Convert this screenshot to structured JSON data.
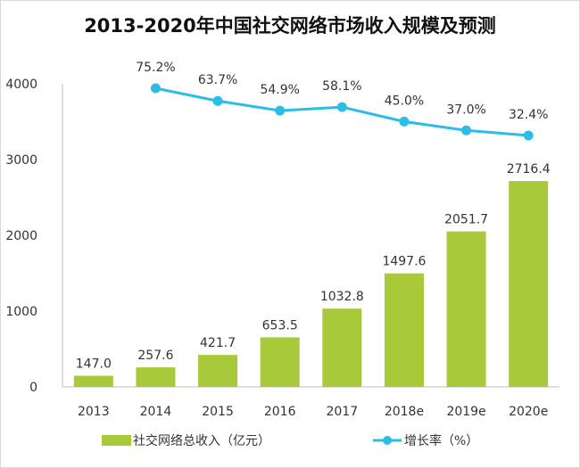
{
  "chart_data": {
    "type": "bar+line",
    "title": "2013-2020年中国社交网络市场收入规模及预测",
    "categories": [
      "2013",
      "2014",
      "2015",
      "2016",
      "2017",
      "2018e",
      "2019e",
      "2020e"
    ],
    "yticks": [
      "0",
      "1000",
      "2000",
      "3000",
      "4000"
    ],
    "ylim": [
      0,
      4000
    ],
    "grid": false,
    "legend_position": "bottom",
    "series": [
      {
        "name": "社交网络总收入（亿元）",
        "type": "bar",
        "color": "#a7c93a",
        "values": [
          147.0,
          257.6,
          421.7,
          653.5,
          1032.8,
          1497.6,
          2051.7,
          2716.4
        ],
        "labels": [
          "147.0",
          "257.6",
          "421.7",
          "653.5",
          "1032.8",
          "1497.6",
          "2051.7",
          "2716.4"
        ]
      },
      {
        "name": "增长率（%）",
        "type": "line",
        "color": "#2bbde4",
        "values": [
          null,
          75.2,
          63.7,
          54.9,
          58.1,
          45.0,
          37.0,
          32.4
        ],
        "labels": [
          "",
          "75.2%",
          "63.7%",
          "54.9%",
          "58.1%",
          "45.0%",
          "37.0%",
          "32.4%"
        ]
      }
    ]
  }
}
